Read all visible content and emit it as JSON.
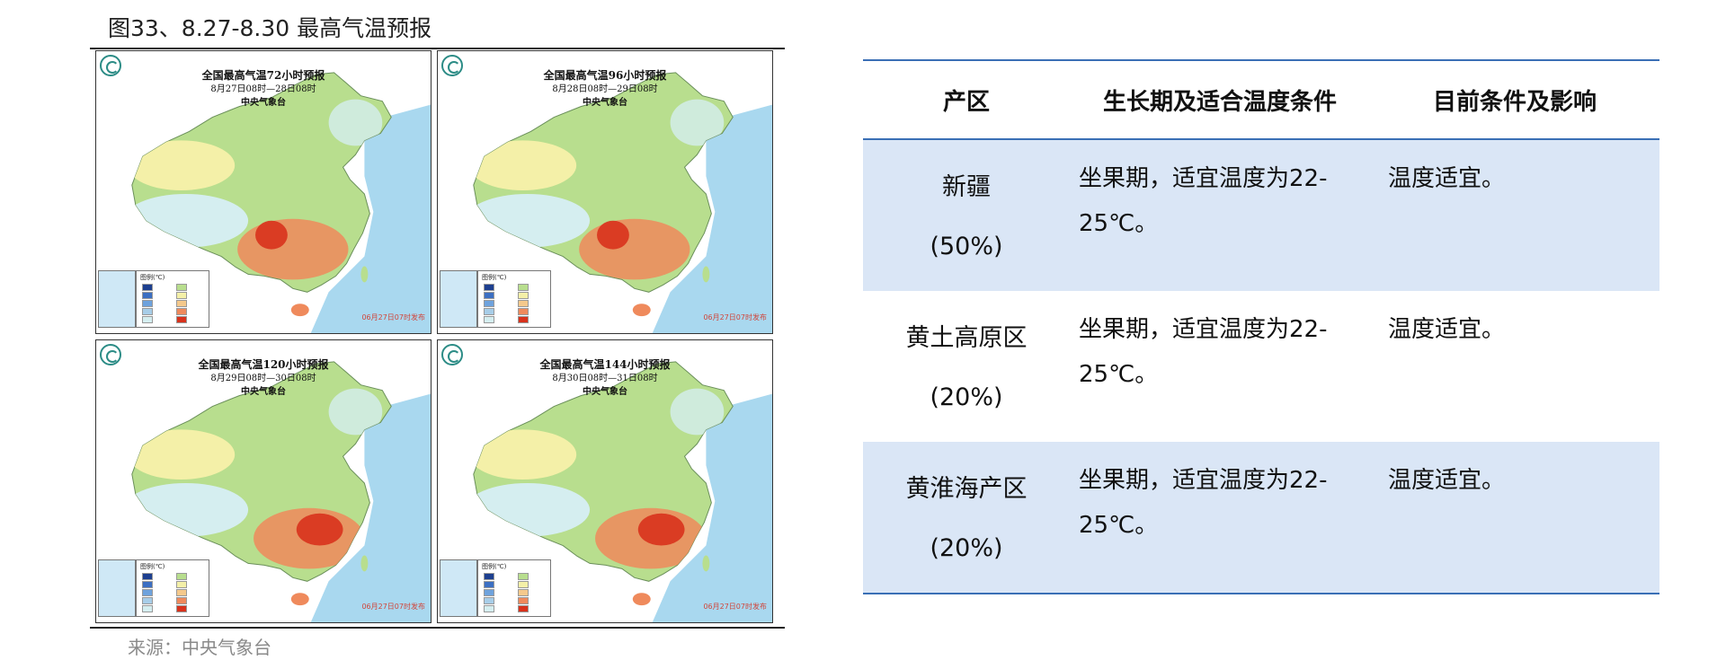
{
  "figure": {
    "title": "图33、8.27-8.30 最高气温预报",
    "source": "来源：中央气象台",
    "maps": [
      {
        "title": "全国最高气温72小时预报",
        "period": "8月27日08时—28日08时",
        "agency": "中央气象台"
      },
      {
        "title": "全国最高气温96小时预报",
        "period": "8月28日08时—29日08时",
        "agency": "中央气象台"
      },
      {
        "title": "全国最高气温120小时预报",
        "period": "8月29日08时—30日08时",
        "agency": "中央气象台"
      },
      {
        "title": "全国最高气温144小时预报",
        "period": "8月30日08时—31日08时",
        "agency": "中央气象台"
      }
    ],
    "legend_title": "图例(℃)",
    "credit": "06月27日07时发布"
  },
  "table": {
    "headers": {
      "region": "产区",
      "growth": "生长期及适合温度条件",
      "status": "目前条件及影响"
    },
    "rows": [
      {
        "region": "新疆",
        "share": "(50%)",
        "growth": "坐果期，适宜温度为22-25℃。",
        "status": "温度适宜。"
      },
      {
        "region": "黄土高原区",
        "share": "(20%)",
        "growth": "坐果期，适宜温度为22-25℃。",
        "status": "温度适宜。"
      },
      {
        "region": "黄淮海产区",
        "share": "(20%)",
        "growth": "坐果期，适宜温度为22-25℃。",
        "status": "温度适宜。"
      }
    ]
  },
  "colors": {
    "table_rule": "#3a6fb5",
    "row_alt": "#dae6f6",
    "sea": "#a9d8ef",
    "land_green": "#b8de8e",
    "land_yellow": "#f4f0a8",
    "land_cool": "#d5eef0",
    "hot": "#ef8a5c",
    "very_hot": "#d8321c"
  }
}
